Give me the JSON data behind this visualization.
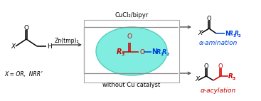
{
  "bg_color": "#ffffff",
  "teal_ellipse_color": "#80ede0",
  "teal_ellipse_edge": "#50d0c0",
  "black": "#000000",
  "blue": "#0044dd",
  "red": "#cc0000",
  "figsize": [
    3.67,
    1.42
  ],
  "dpi": 100,
  "reagent_top": "CuCl₂/bipyr",
  "reagent_bottom": "without Cu catalyst",
  "zn_label": "Zn(tmp)₂",
  "x_label_1": "X = OR,",
  "x_label_2": "NRR'",
  "amination_label": "α-amination",
  "acylation_label": "α-acylation"
}
